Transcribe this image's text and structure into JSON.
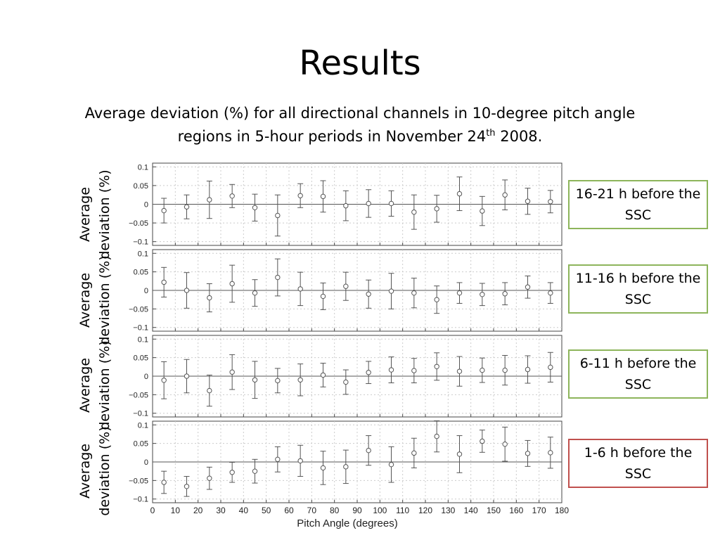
{
  "slide": {
    "title": "Results",
    "subtitle_main": "Average deviation (%) for all directional channels in 10-degree pitch angle regions in 5-hour periods in November 24",
    "subtitle_sup": "th",
    "subtitle_end": " 2008."
  },
  "colors": {
    "green_border": "#8db55b",
    "red_border": "#c0504d",
    "marker": "#555555"
  },
  "chart_data": [
    {
      "type": "scatter",
      "ylabel": "Average deviation (%)",
      "panel_label": "16-21 h before the SSC",
      "ylim": [
        -0.11,
        0.11
      ],
      "xlim": [
        0,
        180
      ],
      "yticks": [
        "0.1",
        "0.05",
        "0",
        "−0.05",
        "−0.1"
      ],
      "x": [
        5,
        15,
        25,
        35,
        45,
        55,
        65,
        75,
        85,
        95,
        105,
        115,
        125,
        135,
        145,
        155,
        165,
        175
      ],
      "y": [
        -0.017,
        -0.007,
        0.012,
        0.022,
        -0.009,
        -0.03,
        0.023,
        0.021,
        -0.004,
        0.002,
        0.002,
        -0.021,
        -0.012,
        0.028,
        -0.018,
        0.025,
        0.008,
        0.007
      ],
      "err": [
        0.033,
        0.032,
        0.05,
        0.031,
        0.036,
        0.055,
        0.032,
        0.042,
        0.04,
        0.037,
        0.034,
        0.046,
        0.036,
        0.045,
        0.039,
        0.04,
        0.035,
        0.03
      ]
    },
    {
      "type": "scatter",
      "ylabel": "Average deviation (%)",
      "panel_label": "11-16 h before the SSC",
      "ylim": [
        -0.11,
        0.11
      ],
      "xlim": [
        0,
        180
      ],
      "yticks": [
        "0.1",
        "0.05",
        "0",
        "−0.05",
        "−0.1"
      ],
      "x": [
        5,
        15,
        25,
        35,
        45,
        55,
        65,
        75,
        85,
        95,
        105,
        115,
        125,
        135,
        145,
        155,
        165,
        175
      ],
      "y": [
        0.022,
        0.0,
        -0.02,
        0.018,
        -0.007,
        0.035,
        0.004,
        -0.016,
        0.011,
        -0.01,
        -0.002,
        -0.007,
        -0.025,
        -0.007,
        -0.011,
        -0.009,
        0.009,
        -0.007
      ],
      "err": [
        0.04,
        0.048,
        0.038,
        0.05,
        0.036,
        0.05,
        0.045,
        0.036,
        0.038,
        0.038,
        0.048,
        0.04,
        0.037,
        0.028,
        0.03,
        0.03,
        0.03,
        0.028
      ]
    },
    {
      "type": "scatter",
      "ylabel": "Average deviation (%)",
      "panel_label": "6-11 h before the SSC",
      "ylim": [
        -0.11,
        0.11
      ],
      "xlim": [
        0,
        180
      ],
      "yticks": [
        "0.1",
        "0.05",
        "0",
        "−0.05",
        "−0.1"
      ],
      "x": [
        5,
        15,
        25,
        35,
        45,
        55,
        65,
        75,
        85,
        95,
        105,
        115,
        125,
        135,
        145,
        155,
        165,
        175
      ],
      "y": [
        -0.011,
        0.0,
        -0.039,
        0.011,
        -0.01,
        -0.012,
        -0.01,
        0.003,
        -0.016,
        0.01,
        0.017,
        0.015,
        0.026,
        0.013,
        0.016,
        0.016,
        0.018,
        0.024
      ],
      "err": [
        0.05,
        0.045,
        0.042,
        0.047,
        0.05,
        0.033,
        0.043,
        0.032,
        0.033,
        0.03,
        0.035,
        0.033,
        0.037,
        0.04,
        0.033,
        0.04,
        0.037,
        0.04
      ]
    },
    {
      "type": "scatter",
      "ylabel": "Average deviation (%)",
      "panel_label": "1-6 h before the SSC",
      "xlabel": "Pitch Angle (degrees)",
      "ylim": [
        -0.11,
        0.11
      ],
      "xlim": [
        0,
        180
      ],
      "yticks": [
        "0.1",
        "0.05",
        "0",
        "−0.05",
        "−0.1"
      ],
      "xticks": [
        0,
        10,
        20,
        30,
        40,
        50,
        60,
        70,
        80,
        90,
        100,
        110,
        120,
        130,
        140,
        150,
        160,
        170,
        180
      ],
      "x": [
        5,
        15,
        25,
        35,
        45,
        55,
        65,
        75,
        85,
        95,
        105,
        115,
        125,
        135,
        145,
        155,
        165,
        175
      ],
      "y": [
        -0.055,
        -0.066,
        -0.044,
        -0.028,
        -0.025,
        0.007,
        0.003,
        -0.016,
        -0.013,
        0.031,
        -0.007,
        0.024,
        0.069,
        0.021,
        0.056,
        0.048,
        0.023,
        0.025
      ],
      "err": [
        0.03,
        0.027,
        0.03,
        0.027,
        0.032,
        0.034,
        0.042,
        0.045,
        0.045,
        0.04,
        0.048,
        0.04,
        0.042,
        0.05,
        0.03,
        0.046,
        0.035,
        0.042
      ]
    }
  ]
}
